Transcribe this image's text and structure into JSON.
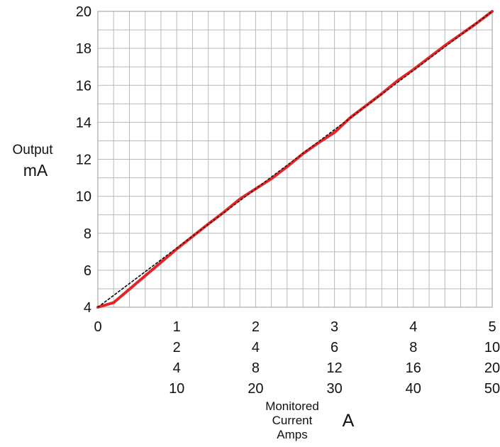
{
  "chart_data": {
    "type": "line",
    "ylabel_line1": "Output",
    "ylabel_line2": "mA",
    "xlabel_lines": [
      "Monitored",
      "Current",
      "Amps"
    ],
    "x_unit": "A",
    "ylim": [
      4,
      20
    ],
    "yticks": [
      "4",
      "6",
      "8",
      "10",
      "12",
      "14",
      "16",
      "18",
      "20"
    ],
    "xlim": [
      0,
      5
    ],
    "x_origin_label": "0",
    "x_tick_rows": [
      [
        "1",
        "2",
        "3",
        "4",
        "5"
      ],
      [
        "2",
        "4",
        "6",
        "8",
        "10"
      ],
      [
        "4",
        "8",
        "12",
        "16",
        "20"
      ],
      [
        "10",
        "20",
        "30",
        "40",
        "50"
      ]
    ],
    "grid": true,
    "series": [
      {
        "color": "#e32526",
        "style": "solid",
        "x": [
          0,
          0.2,
          0.6,
          1.0,
          1.4,
          1.6,
          1.8,
          2.0,
          2.2,
          2.4,
          2.6,
          2.8,
          3.0,
          3.2,
          3.4,
          3.6,
          3.8,
          4.0,
          4.2,
          4.4,
          4.6,
          4.8,
          5.0
        ],
        "y": [
          4.0,
          4.25,
          5.7,
          7.15,
          8.5,
          9.15,
          9.85,
          10.4,
          10.95,
          11.6,
          12.3,
          12.9,
          13.45,
          14.25,
          14.9,
          15.55,
          16.25,
          16.85,
          17.5,
          18.15,
          18.75,
          19.35,
          20.0
        ]
      },
      {
        "color": "#111111",
        "style": "dashed",
        "x": [
          0,
          5
        ],
        "y": [
          4,
          20
        ]
      }
    ]
  }
}
